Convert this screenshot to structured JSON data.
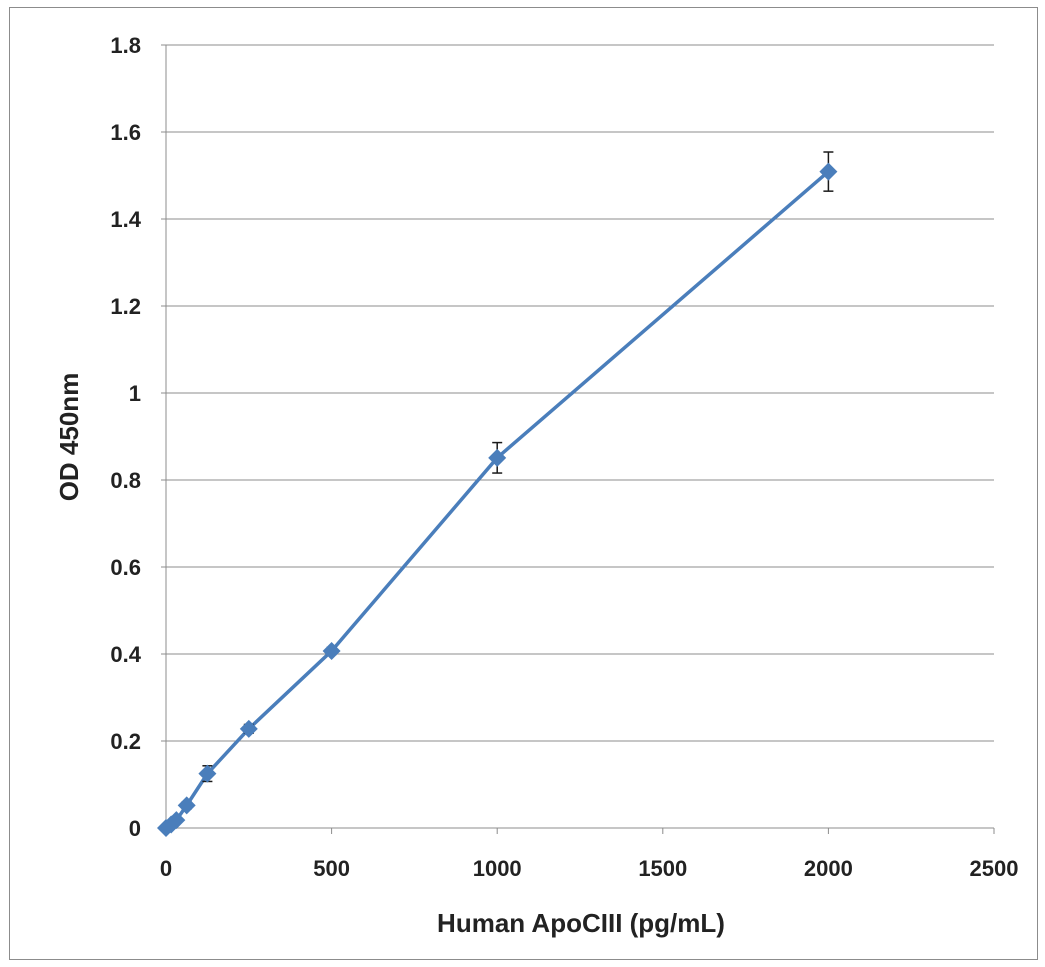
{
  "chart_data": {
    "type": "scatter",
    "title": "",
    "xlabel": "Human ApoCIII (pg/mL)",
    "ylabel": "OD 450nm",
    "xlim": [
      0,
      2500
    ],
    "ylim": [
      0,
      1.8
    ],
    "x_ticks": [
      "0",
      "500",
      "1000",
      "1500",
      "2000",
      "2500"
    ],
    "y_ticks": [
      "0",
      "0.2",
      "0.4",
      "0.6",
      "0.8",
      "1",
      "1.2",
      "1.4",
      "1.6",
      "1.8"
    ],
    "grid": "horizontal",
    "legend": "none",
    "series": [
      {
        "x": [
          0,
          15.6,
          31.25,
          62.5,
          125,
          250,
          500,
          1000,
          2000
        ],
        "y": [
          0.0,
          0.008,
          0.018,
          0.052,
          0.125,
          0.228,
          0.407,
          0.851,
          1.509
        ],
        "error": [
          0.002,
          0.004,
          0.006,
          0.008,
          0.018,
          0.01,
          0.008,
          0.035,
          0.045
        ],
        "color": "#4a7ebb",
        "marker": "diamond"
      }
    ],
    "colors": {
      "series": "#4a7ebb",
      "grid": "#8c8c8c",
      "axis": "#8c8c8c",
      "error_bar": "#1a1a1a"
    }
  }
}
